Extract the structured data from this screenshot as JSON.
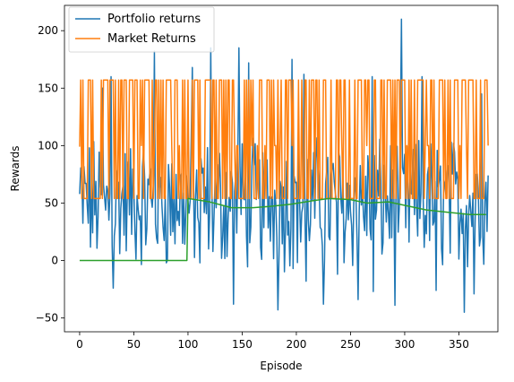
{
  "chart_data": {
    "type": "line",
    "xlabel": "Episode",
    "ylabel": "Rewards",
    "xlim": [
      -14,
      386
    ],
    "ylim": [
      -62,
      222
    ],
    "xticks": [
      0,
      50,
      100,
      150,
      200,
      250,
      300,
      350
    ],
    "yticks": [
      -50,
      0,
      50,
      100,
      150,
      200
    ],
    "grid": false,
    "legend_position": "top-left",
    "series": [
      {
        "name": "Portfolio returns",
        "color": "#1f77b4",
        "generator": "noisy",
        "n": 378,
        "base": 50,
        "amplitude": 48,
        "peaks": [
          [
            21,
            150
          ],
          [
            29,
            160
          ],
          [
            69,
            182
          ],
          [
            104,
            168
          ],
          [
            121,
            185
          ],
          [
            147,
            185
          ],
          [
            156,
            172
          ],
          [
            196,
            175
          ],
          [
            207,
            162
          ],
          [
            270,
            160
          ],
          [
            297,
            210
          ],
          [
            316,
            160
          ],
          [
            371,
            145
          ]
        ],
        "troughs": [
          [
            31,
            -24
          ],
          [
            111,
            -2
          ],
          [
            142,
            -38
          ],
          [
            183,
            -43
          ],
          [
            209,
            -18
          ],
          [
            225,
            -38
          ],
          [
            238,
            -12
          ],
          [
            257,
            -34
          ],
          [
            271,
            -27
          ],
          [
            291,
            -39
          ],
          [
            329,
            -26
          ],
          [
            355,
            -45
          ],
          [
            364,
            -29
          ]
        ]
      },
      {
        "name": "Market Returns",
        "color": "#ff7f0e",
        "generator": "binary",
        "n": 378,
        "low": 54,
        "high": 157,
        "mid": 100,
        "start": 99,
        "end": 100
      },
      {
        "name": "",
        "color": "#2ca02c",
        "generator": "moving_avg",
        "zero_until": 99,
        "jump_value": 54,
        "points": [
          [
            99,
            0
          ],
          [
            100,
            54
          ],
          [
            120,
            51
          ],
          [
            140,
            46
          ],
          [
            160,
            46
          ],
          [
            175,
            47
          ],
          [
            195,
            49
          ],
          [
            215,
            52
          ],
          [
            230,
            54
          ],
          [
            250,
            53
          ],
          [
            265,
            50
          ],
          [
            285,
            51
          ],
          [
            300,
            48
          ],
          [
            320,
            44
          ],
          [
            340,
            42
          ],
          [
            360,
            40
          ],
          [
            375,
            40
          ]
        ]
      }
    ]
  }
}
